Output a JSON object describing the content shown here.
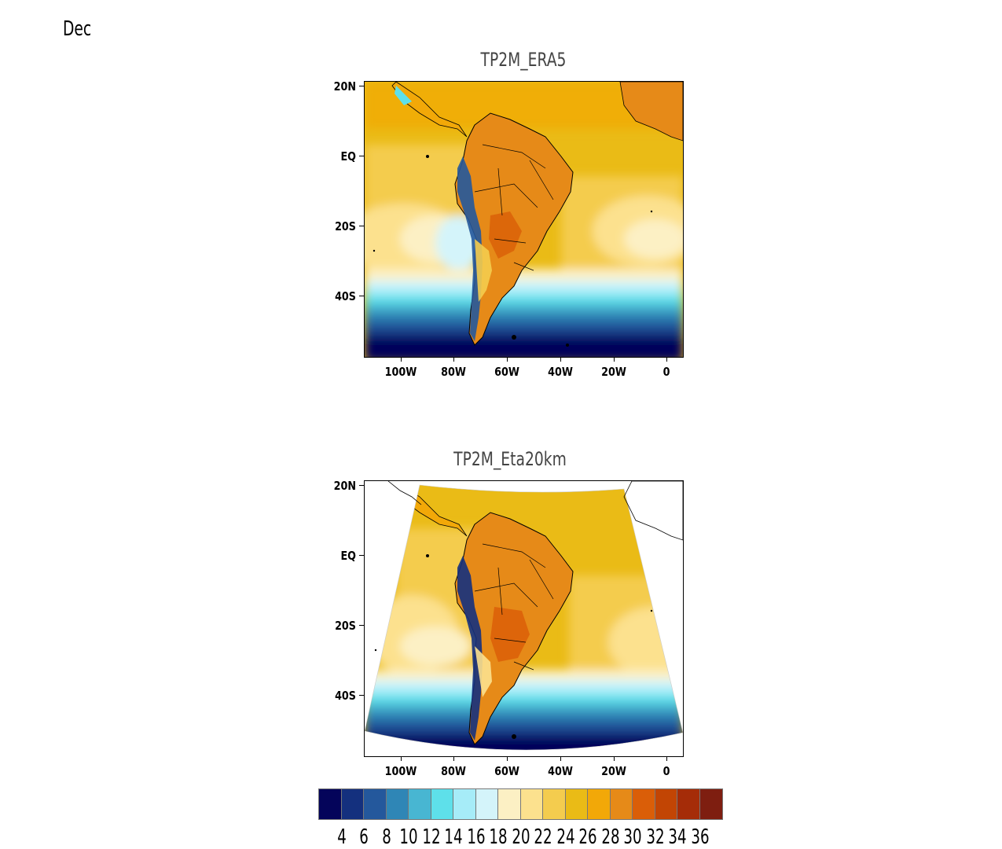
{
  "month": "Dec",
  "panels": [
    {
      "title": "TP2M_ERA5"
    },
    {
      "title": "TP2M_Eta20km"
    }
  ],
  "lat_labels": [
    "20N",
    "EQ",
    "20S",
    "40S"
  ],
  "lon_labels": [
    "100W",
    "80W",
    "60W",
    "40W",
    "20W",
    "0"
  ],
  "colorbar": {
    "colors": [
      "#04045a",
      "#14307e",
      "#24589c",
      "#2f86b6",
      "#48b6d2",
      "#5ee0ea",
      "#a6ecf8",
      "#d4f4fa",
      "#fcf0c4",
      "#fce18e",
      "#f4cc4e",
      "#eabb16",
      "#f2a808",
      "#e68a18",
      "#da5e08",
      "#c24504",
      "#a52c08",
      "#7e1e10"
    ],
    "labels": [
      "4",
      "6",
      "8",
      "10",
      "12",
      "14",
      "16",
      "18",
      "20",
      "22",
      "24",
      "26",
      "28",
      "30",
      "32",
      "34",
      "36"
    ]
  }
}
